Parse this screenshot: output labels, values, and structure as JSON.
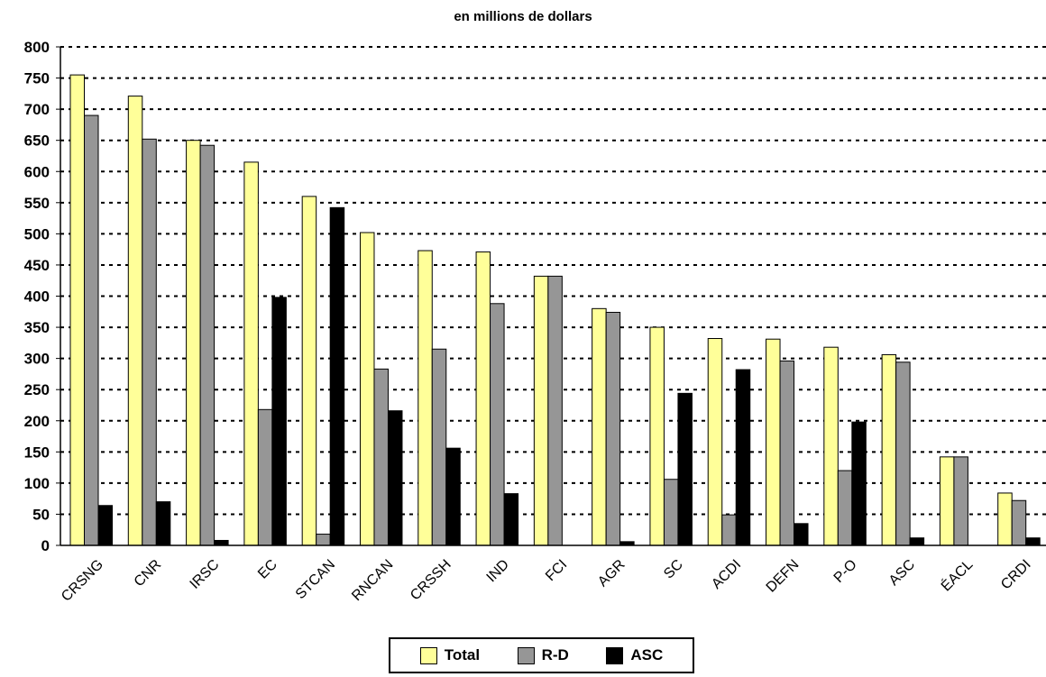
{
  "chart_data": {
    "type": "bar",
    "title": "en millions de dollars",
    "categories": [
      "CRSNG",
      "CNR",
      "IRSC",
      "EC",
      "STCAN",
      "RNCAN",
      "CRSSH",
      "IND",
      "FCI",
      "AGR",
      "SC",
      "ACDI",
      "DEFN",
      "P-O",
      "ASC",
      "ÉACL",
      "CRDI"
    ],
    "series": [
      {
        "name": "Total",
        "color": "#ffff99",
        "values": [
          755,
          721,
          650,
          615,
          560,
          502,
          473,
          471,
          432,
          380,
          350,
          332,
          331,
          318,
          306,
          142,
          84
        ]
      },
      {
        "name": "R-D",
        "color": "#969696",
        "values": [
          690,
          652,
          642,
          218,
          18,
          283,
          315,
          388,
          432,
          374,
          106,
          49,
          296,
          120,
          294,
          142,
          72
        ]
      },
      {
        "name": "ASC",
        "color": "#000000",
        "values": [
          64,
          70,
          8,
          398,
          542,
          216,
          156,
          83,
          0,
          6,
          244,
          282,
          35,
          198,
          12,
          0,
          12
        ]
      }
    ],
    "ylim": [
      0,
      800
    ],
    "yticks": [
      "0",
      "50",
      "100",
      "150",
      "200",
      "250",
      "300",
      "350",
      "400",
      "450",
      "500",
      "550",
      "600",
      "650",
      "700",
      "750",
      "800"
    ],
    "grid": "horizontal dotted",
    "legend_position": "bottom"
  }
}
